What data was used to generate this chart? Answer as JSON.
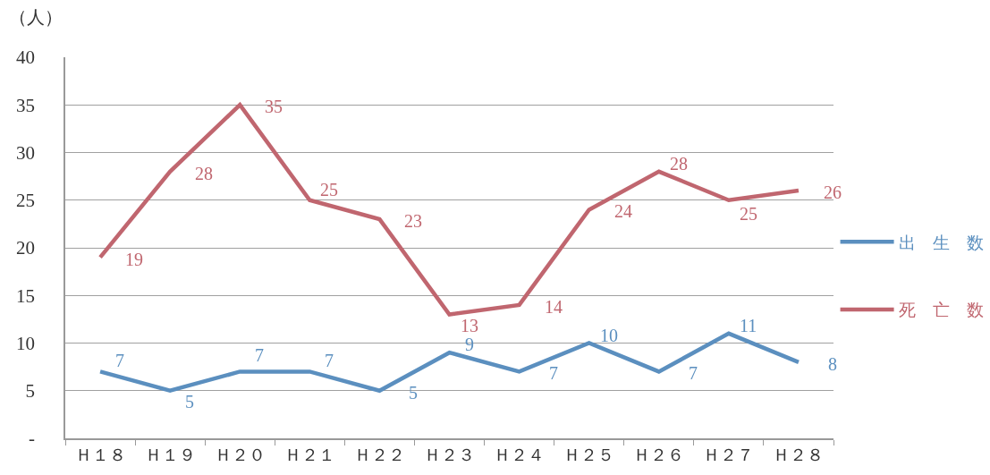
{
  "chart_data": {
    "type": "line",
    "ylabel": "（人）",
    "categories": [
      "Ｈ１８",
      "Ｈ１９",
      "Ｈ２０",
      "Ｈ２１",
      "Ｈ２２",
      "Ｈ２３",
      "Ｈ２４",
      "Ｈ２５",
      "Ｈ２６",
      "Ｈ２７",
      "Ｈ２８"
    ],
    "series": [
      {
        "name": "出　生　数",
        "color": "#5b8fbf",
        "values": [
          7,
          5,
          7,
          7,
          5,
          9,
          7,
          10,
          7,
          11,
          8
        ]
      },
      {
        "name": "死　亡　数",
        "color": "#c0666f",
        "values": [
          19,
          28,
          35,
          25,
          23,
          13,
          14,
          24,
          28,
          25,
          26
        ]
      }
    ],
    "ylim": [
      0,
      40
    ],
    "yticks": [
      {
        "value": 0,
        "label": "-"
      },
      5,
      10,
      15,
      20,
      25,
      30,
      35,
      40
    ],
    "grid": "y",
    "legend": "right",
    "marker": "none",
    "line_style": "solid",
    "data_labels": true
  }
}
